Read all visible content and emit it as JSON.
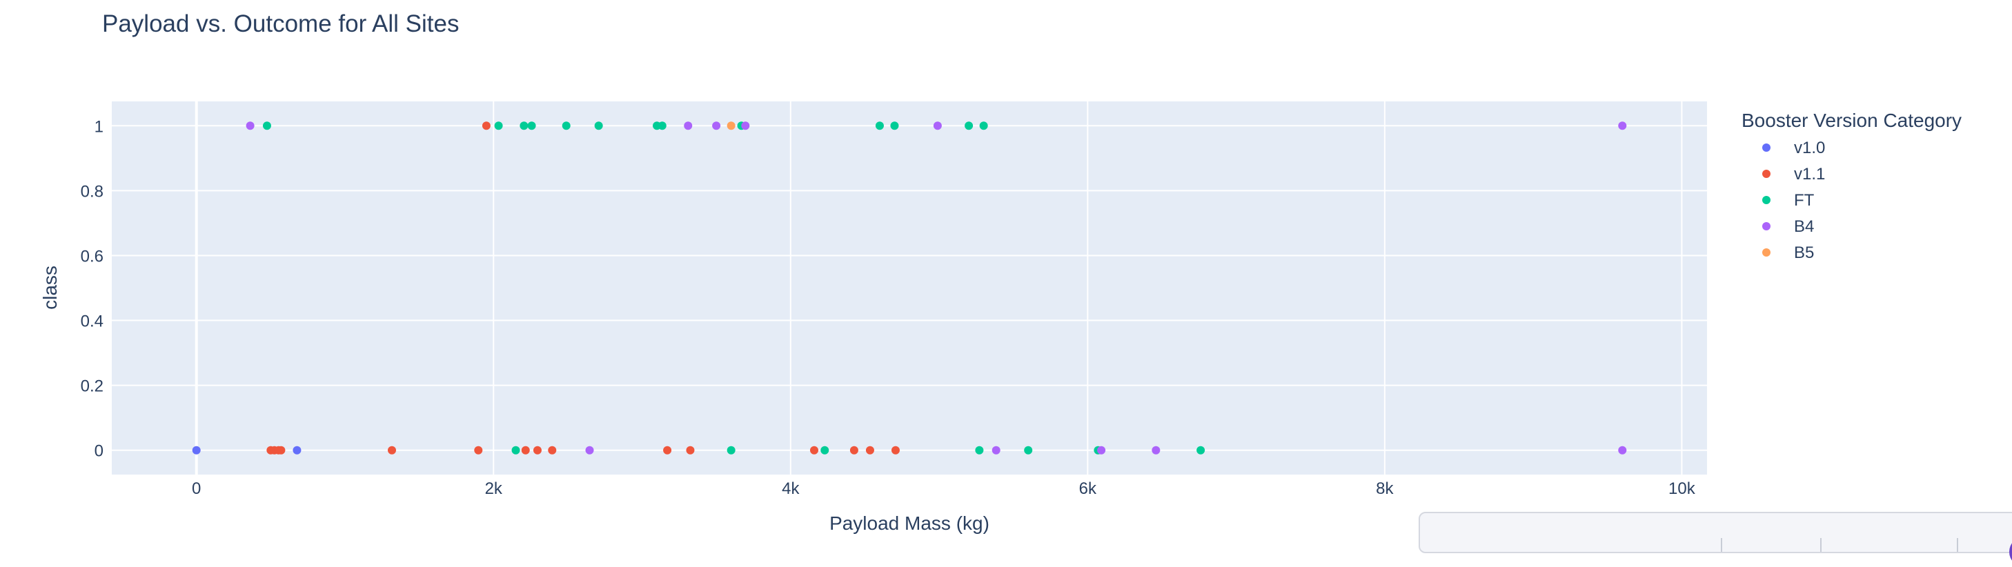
{
  "chart_data": {
    "type": "scatter",
    "title": "Payload vs. Outcome for All Sites",
    "xlabel": "Payload Mass (kg)",
    "ylabel": "class",
    "xlim": [
      -570,
      10170
    ],
    "ylim": [
      -0.075,
      1.075
    ],
    "x_ticks": [
      {
        "value": 0,
        "label": "0"
      },
      {
        "value": 2000,
        "label": "2k"
      },
      {
        "value": 4000,
        "label": "4k"
      },
      {
        "value": 6000,
        "label": "6k"
      },
      {
        "value": 8000,
        "label": "8k"
      },
      {
        "value": 10000,
        "label": "10k"
      }
    ],
    "y_ticks": [
      {
        "value": 0,
        "label": "0"
      },
      {
        "value": 0.2,
        "label": "0.2"
      },
      {
        "value": 0.4,
        "label": "0.4"
      },
      {
        "value": 0.6,
        "label": "0.6"
      },
      {
        "value": 0.8,
        "label": "0.8"
      },
      {
        "value": 1,
        "label": "1"
      }
    ],
    "grid": true,
    "legend": {
      "title": "Booster Version Category",
      "position": "right"
    },
    "series": [
      {
        "name": "v1.0",
        "color": "#636efa",
        "x": [
          0,
          677
        ],
        "y": [
          0,
          0
        ]
      },
      {
        "name": "v1.1",
        "color": "#ef553b",
        "x": [
          500,
          525,
          553,
          570,
          1316,
          1898,
          1952,
          2216,
          2296,
          2395,
          3170,
          3325,
          4159,
          4428,
          4535,
          4707
        ],
        "y": [
          0,
          0,
          0,
          0,
          0,
          0,
          1,
          0,
          0,
          0,
          0,
          0,
          0,
          0,
          0,
          0
        ]
      },
      {
        "name": "FT",
        "color": "#00cc96",
        "x": [
          475,
          2034,
          2150,
          2205,
          2257,
          2490,
          2708,
          3100,
          3136,
          3600,
          3669,
          4230,
          4600,
          4700,
          5200,
          5300,
          5271,
          5600,
          6070,
          6761
        ],
        "y": [
          1,
          1,
          0,
          1,
          1,
          1,
          1,
          1,
          1,
          0,
          1,
          0,
          1,
          1,
          1,
          1,
          0,
          0,
          0,
          0
        ]
      },
      {
        "name": "B4",
        "color": "#ab63fa",
        "x": [
          362,
          2647,
          3310,
          3500,
          3696,
          4990,
          5384,
          6092,
          6460,
          9600,
          9600
        ],
        "y": [
          1,
          0,
          1,
          1,
          1,
          1,
          0,
          0,
          0,
          1,
          0
        ]
      },
      {
        "name": "B5",
        "color": "#ffa15a",
        "x": [
          3600
        ],
        "y": [
          1
        ]
      }
    ]
  }
}
